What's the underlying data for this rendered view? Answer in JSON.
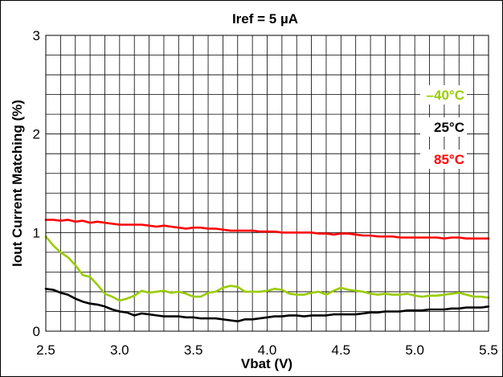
{
  "chart_data": {
    "type": "line",
    "title": "Iref = 5 µA",
    "xlabel": "Vbat (V)",
    "ylabel": "Iout Current Matching (%)",
    "xlim": [
      2.5,
      5.5
    ],
    "ylim": [
      0,
      3
    ],
    "x_major_ticks": [
      2.5,
      3.0,
      3.5,
      4.0,
      4.5,
      5.0,
      5.5
    ],
    "x_tick_labels": [
      "2.5",
      "3.0",
      "3.5",
      "4.0",
      "4.5",
      "5.0",
      "5.5"
    ],
    "y_major_ticks": [
      0,
      1,
      2,
      3
    ],
    "y_tick_labels": [
      "0",
      "1",
      "2",
      "3"
    ],
    "x_grid_step": 0.1,
    "y_grid_step": 0.2,
    "grid": true,
    "legend_position": "right",
    "series": [
      {
        "name": "–40°C",
        "color": "#99cc00",
        "x": [
          2.5,
          2.55,
          2.6,
          2.65,
          2.7,
          2.75,
          2.8,
          2.85,
          2.9,
          2.95,
          3.0,
          3.05,
          3.1,
          3.15,
          3.2,
          3.25,
          3.3,
          3.35,
          3.4,
          3.45,
          3.5,
          3.55,
          3.6,
          3.65,
          3.7,
          3.75,
          3.8,
          3.85,
          3.9,
          3.95,
          4.0,
          4.05,
          4.1,
          4.15,
          4.2,
          4.25,
          4.3,
          4.35,
          4.4,
          4.45,
          4.5,
          4.55,
          4.6,
          4.65,
          4.7,
          4.75,
          4.8,
          4.85,
          4.9,
          4.95,
          5.0,
          5.05,
          5.1,
          5.15,
          5.2,
          5.25,
          5.3,
          5.35,
          5.4,
          5.45,
          5.5
        ],
        "y": [
          0.96,
          0.87,
          0.8,
          0.75,
          0.67,
          0.57,
          0.55,
          0.47,
          0.38,
          0.35,
          0.31,
          0.33,
          0.36,
          0.41,
          0.39,
          0.4,
          0.41,
          0.39,
          0.4,
          0.38,
          0.35,
          0.35,
          0.39,
          0.4,
          0.44,
          0.46,
          0.45,
          0.4,
          0.4,
          0.4,
          0.41,
          0.43,
          0.42,
          0.38,
          0.37,
          0.37,
          0.39,
          0.4,
          0.37,
          0.41,
          0.44,
          0.42,
          0.41,
          0.4,
          0.38,
          0.37,
          0.38,
          0.37,
          0.37,
          0.38,
          0.36,
          0.35,
          0.36,
          0.36,
          0.37,
          0.38,
          0.39,
          0.37,
          0.35,
          0.35,
          0.34
        ]
      },
      {
        "name": "25°C",
        "color": "#000000",
        "x": [
          2.5,
          2.55,
          2.6,
          2.65,
          2.7,
          2.75,
          2.8,
          2.85,
          2.9,
          2.95,
          3.0,
          3.05,
          3.1,
          3.15,
          3.2,
          3.25,
          3.3,
          3.35,
          3.4,
          3.45,
          3.5,
          3.55,
          3.6,
          3.65,
          3.7,
          3.75,
          3.8,
          3.85,
          3.9,
          3.95,
          4.0,
          4.05,
          4.1,
          4.15,
          4.2,
          4.25,
          4.3,
          4.35,
          4.4,
          4.45,
          4.5,
          4.55,
          4.6,
          4.65,
          4.7,
          4.75,
          4.8,
          4.85,
          4.9,
          4.95,
          5.0,
          5.05,
          5.1,
          5.15,
          5.2,
          5.25,
          5.3,
          5.35,
          5.4,
          5.45,
          5.5
        ],
        "y": [
          0.43,
          0.42,
          0.39,
          0.37,
          0.33,
          0.3,
          0.28,
          0.27,
          0.25,
          0.22,
          0.2,
          0.19,
          0.16,
          0.18,
          0.17,
          0.16,
          0.15,
          0.15,
          0.15,
          0.14,
          0.14,
          0.13,
          0.13,
          0.13,
          0.12,
          0.11,
          0.1,
          0.12,
          0.12,
          0.13,
          0.14,
          0.15,
          0.15,
          0.16,
          0.16,
          0.15,
          0.16,
          0.16,
          0.16,
          0.17,
          0.17,
          0.17,
          0.17,
          0.18,
          0.19,
          0.19,
          0.2,
          0.2,
          0.2,
          0.21,
          0.21,
          0.21,
          0.22,
          0.22,
          0.22,
          0.23,
          0.23,
          0.24,
          0.24,
          0.24,
          0.25
        ]
      },
      {
        "name": "85°C",
        "color": "#ff0000",
        "x": [
          2.5,
          2.55,
          2.6,
          2.65,
          2.7,
          2.75,
          2.8,
          2.85,
          2.9,
          2.95,
          3.0,
          3.05,
          3.1,
          3.15,
          3.2,
          3.25,
          3.3,
          3.35,
          3.4,
          3.45,
          3.5,
          3.55,
          3.6,
          3.65,
          3.7,
          3.75,
          3.8,
          3.85,
          3.9,
          3.95,
          4.0,
          4.05,
          4.1,
          4.15,
          4.2,
          4.25,
          4.3,
          4.35,
          4.4,
          4.45,
          4.5,
          4.55,
          4.6,
          4.65,
          4.7,
          4.75,
          4.8,
          4.85,
          4.9,
          4.95,
          5.0,
          5.05,
          5.1,
          5.15,
          5.2,
          5.25,
          5.3,
          5.35,
          5.4,
          5.45,
          5.5
        ],
        "y": [
          1.13,
          1.13,
          1.12,
          1.13,
          1.11,
          1.12,
          1.1,
          1.11,
          1.1,
          1.09,
          1.08,
          1.08,
          1.08,
          1.08,
          1.07,
          1.06,
          1.07,
          1.06,
          1.05,
          1.04,
          1.05,
          1.05,
          1.04,
          1.04,
          1.03,
          1.02,
          1.02,
          1.02,
          1.02,
          1.01,
          1.01,
          1.01,
          1.0,
          1.0,
          1.0,
          1.0,
          1.0,
          0.99,
          0.99,
          0.98,
          0.99,
          0.99,
          0.98,
          0.97,
          0.97,
          0.96,
          0.96,
          0.96,
          0.95,
          0.95,
          0.95,
          0.95,
          0.95,
          0.95,
          0.94,
          0.95,
          0.95,
          0.94,
          0.94,
          0.94,
          0.94
        ]
      }
    ]
  }
}
